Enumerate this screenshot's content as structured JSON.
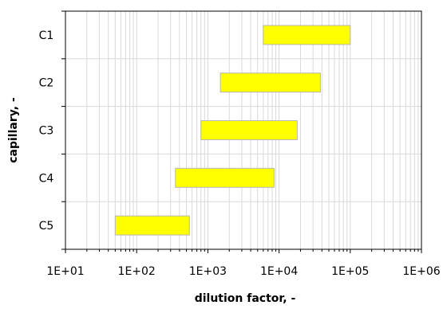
{
  "chart_data": {
    "type": "bar",
    "orientation": "horizontal",
    "floating": true,
    "x_scale": "log",
    "xlim": [
      10,
      1000000
    ],
    "x_tick_labels": [
      "1E+01",
      "1E+02",
      "1E+03",
      "1E+04",
      "1E+05",
      "1E+06"
    ],
    "x_tick_values": [
      10,
      100,
      1000,
      10000,
      100000,
      1000000
    ],
    "xlabel": "dilution factor, -",
    "ylabel": "capillary, -",
    "categories": [
      "C1",
      "C2",
      "C3",
      "C4",
      "C5"
    ],
    "ranges": [
      {
        "category": "C1",
        "min": 6000,
        "max": 100000
      },
      {
        "category": "C2",
        "min": 1500,
        "max": 38000
      },
      {
        "category": "C3",
        "min": 800,
        "max": 18000
      },
      {
        "category": "C4",
        "min": 350,
        "max": 8500
      },
      {
        "category": "C5",
        "min": 50,
        "max": 550
      }
    ],
    "grid": true,
    "bar_color": "#ffff00",
    "bar_border_color": "#b5b5b5",
    "grid_color": "#d9d9d9"
  }
}
